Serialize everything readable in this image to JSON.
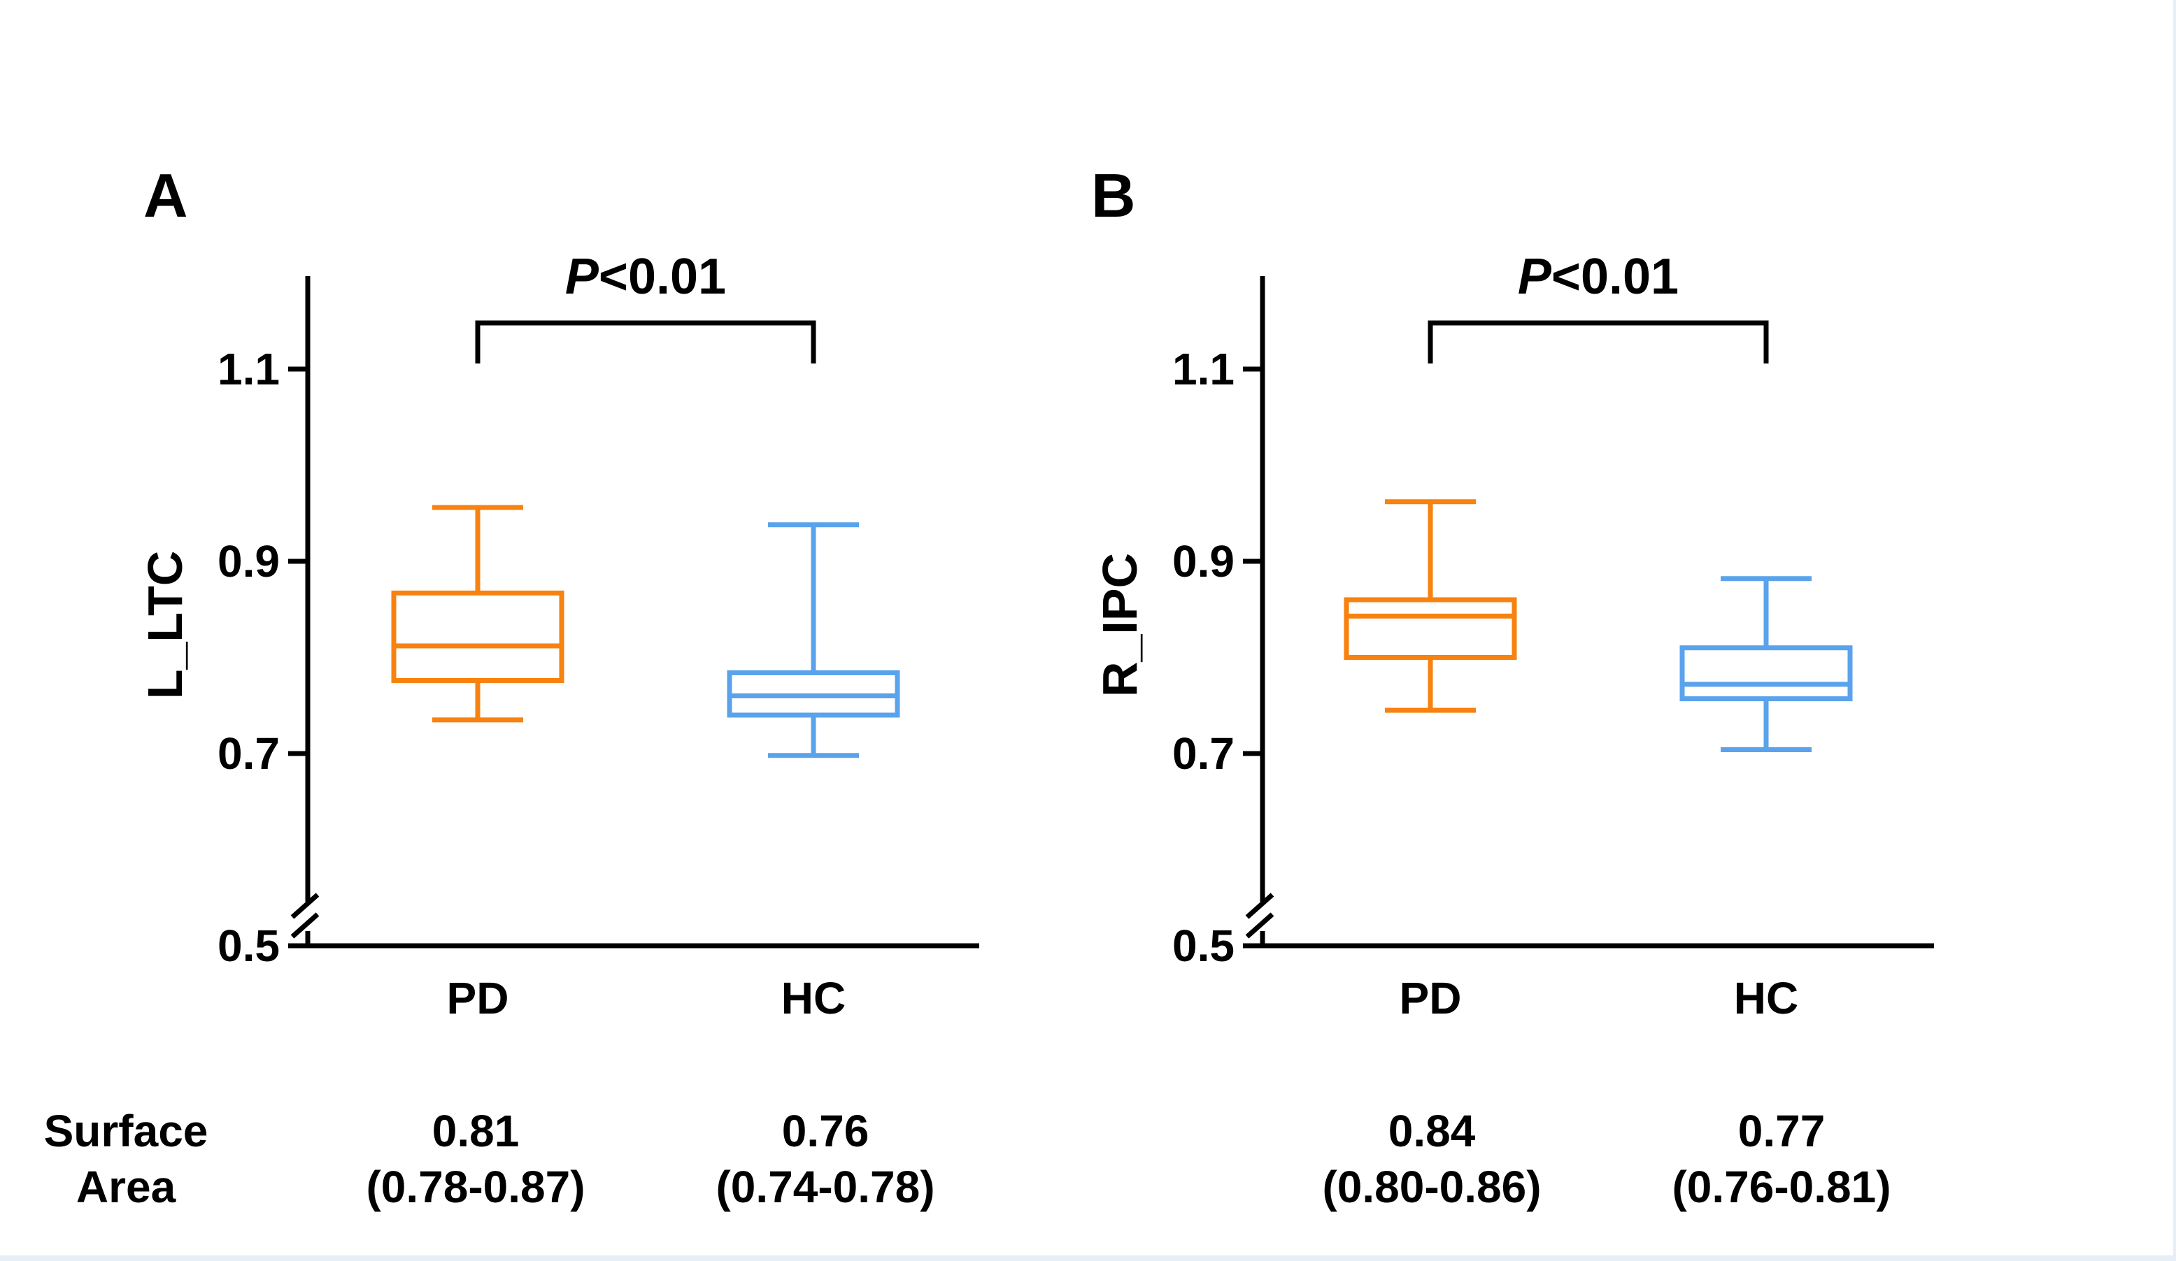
{
  "chart_data": [
    {
      "type": "boxplot",
      "panel": "A",
      "ylabel": "L_LTC",
      "ylim": [
        0.5,
        1.2
      ],
      "yticks": [
        "0.5",
        "0.7",
        "0.9",
        "1.1"
      ],
      "axis_break": true,
      "categories": [
        "PD",
        "HC"
      ],
      "colors": [
        "#f7820f",
        "#5aa3ec"
      ],
      "boxes": [
        {
          "name": "PD",
          "min": 0.735,
          "q1": 0.776,
          "median": 0.812,
          "q3": 0.867,
          "max": 0.956
        },
        {
          "name": "HC",
          "min": 0.698,
          "q1": 0.74,
          "median": 0.76,
          "q3": 0.784,
          "max": 0.938
        }
      ],
      "annotation": {
        "p_symbol": "P",
        "p_rest": "<0.01"
      },
      "surface_area": [
        {
          "value": "0.81",
          "range": "(0.78-0.87)"
        },
        {
          "value": "0.76",
          "range": "(0.74-0.78)"
        }
      ]
    },
    {
      "type": "boxplot",
      "panel": "B",
      "ylabel": "R_IPC",
      "ylim": [
        0.5,
        1.2
      ],
      "yticks": [
        "0.5",
        "0.7",
        "0.9",
        "1.1"
      ],
      "axis_break": true,
      "categories": [
        "PD",
        "HC"
      ],
      "colors": [
        "#f7820f",
        "#5aa3ec"
      ],
      "boxes": [
        {
          "name": "PD",
          "min": 0.745,
          "q1": 0.8,
          "median": 0.843,
          "q3": 0.86,
          "max": 0.962
        },
        {
          "name": "HC",
          "min": 0.704,
          "q1": 0.757,
          "median": 0.772,
          "q3": 0.81,
          "max": 0.882
        }
      ],
      "annotation": {
        "p_symbol": "P",
        "p_rest": "<0.01"
      },
      "surface_area": [
        {
          "value": "0.84",
          "range": "(0.80-0.86)"
        },
        {
          "value": "0.77",
          "range": "(0.76-0.81)"
        }
      ]
    }
  ],
  "row_label": {
    "line1": "Surface",
    "line2": "Area"
  }
}
